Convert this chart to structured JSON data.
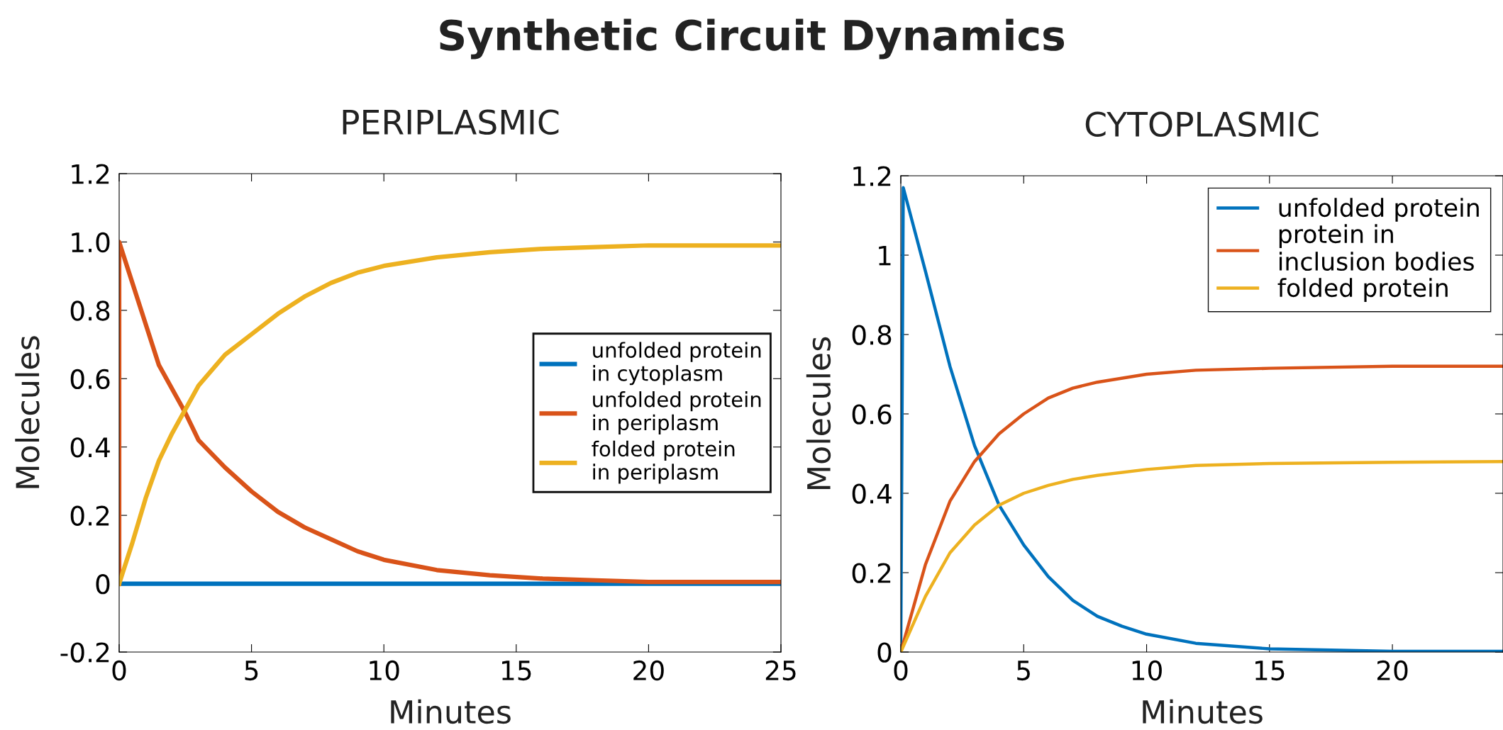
{
  "chart_data": [
    {
      "type": "line",
      "title": "Synthetic Circuit Dynamics",
      "subtitle": "PERIPLASMIC",
      "xlabel": "Minutes",
      "ylabel": "Molecules",
      "xlim": [
        0,
        25
      ],
      "xticks": [
        0,
        5,
        10,
        15,
        20,
        25
      ],
      "ylim": [
        -0.2,
        1.2
      ],
      "yticks": [
        -0.2,
        0,
        0.2,
        0.4,
        0.6,
        0.8,
        {
          "value": 1.0,
          "label": "1.0"
        },
        1.2
      ],
      "grid": false,
      "legend": "right",
      "marker": "none",
      "line_style": "solid",
      "series": [
        {
          "name": "unfolded protein\nin cytoplasm",
          "color": "#0072bd",
          "x": [
            0,
            25
          ],
          "values": [
            0,
            0
          ]
        },
        {
          "name": "unfolded protein\nin periplasm",
          "color": "#d95319",
          "x": [
            0,
            0,
            0.5,
            1,
            1.5,
            2,
            2.5,
            3,
            4,
            5,
            6,
            7,
            8,
            9,
            10,
            12,
            14,
            16,
            18,
            20,
            25
          ],
          "values": [
            0,
            1.0,
            0.88,
            0.76,
            0.64,
            0.57,
            0.5,
            0.42,
            0.34,
            0.27,
            0.21,
            0.165,
            0.13,
            0.095,
            0.07,
            0.04,
            0.025,
            0.015,
            0.01,
            0.005,
            0.005
          ]
        },
        {
          "name": "folded protein\nin periplasm",
          "color": "#edb120",
          "x": [
            0,
            0.5,
            1,
            1.5,
            2,
            2.5,
            3,
            4,
            5,
            6,
            7,
            8,
            9,
            10,
            12,
            14,
            16,
            18,
            20,
            25
          ],
          "values": [
            0,
            0.12,
            0.25,
            0.36,
            0.44,
            0.51,
            0.58,
            0.67,
            0.73,
            0.79,
            0.84,
            0.88,
            0.91,
            0.93,
            0.955,
            0.97,
            0.98,
            0.985,
            0.99,
            0.99
          ]
        }
      ]
    },
    {
      "type": "line",
      "subtitle": "CYTOPLASMIC",
      "xlabel": "Minutes",
      "ylabel": "Molecules",
      "xlim": [
        0,
        24.5
      ],
      "xticks": [
        0,
        5,
        10,
        15,
        20
      ],
      "ylim": [
        0,
        1.2
      ],
      "yticks": [
        0,
        0.2,
        0.4,
        0.6,
        0.8,
        1,
        1.2
      ],
      "grid": false,
      "legend": "top right",
      "marker": "none",
      "line_style": "solid",
      "series": [
        {
          "name": "unfolded protein",
          "color": "#0072bd",
          "x": [
            0,
            0.1,
            1,
            2,
            3,
            4,
            5,
            6,
            7,
            8,
            9,
            10,
            12,
            15,
            20,
            24.5
          ],
          "values": [
            0,
            1.17,
            0.96,
            0.72,
            0.52,
            0.37,
            0.27,
            0.19,
            0.13,
            0.09,
            0.065,
            0.045,
            0.022,
            0.008,
            0.002,
            0.002
          ]
        },
        {
          "name": "protein in\ninclusion bodies",
          "color": "#d95319",
          "x": [
            0,
            1,
            2,
            3,
            4,
            5,
            6,
            7,
            8,
            10,
            12,
            15,
            20,
            24.5
          ],
          "values": [
            0,
            0.22,
            0.38,
            0.48,
            0.55,
            0.6,
            0.64,
            0.665,
            0.68,
            0.7,
            0.71,
            0.715,
            0.72,
            0.72
          ]
        },
        {
          "name": "folded protein",
          "color": "#edb120",
          "x": [
            0,
            1,
            2,
            3,
            4,
            5,
            6,
            7,
            8,
            10,
            12,
            15,
            20,
            24.5
          ],
          "values": [
            0,
            0.14,
            0.25,
            0.32,
            0.37,
            0.4,
            0.42,
            0.435,
            0.445,
            0.46,
            0.47,
            0.475,
            0.478,
            0.48
          ]
        }
      ]
    }
  ]
}
